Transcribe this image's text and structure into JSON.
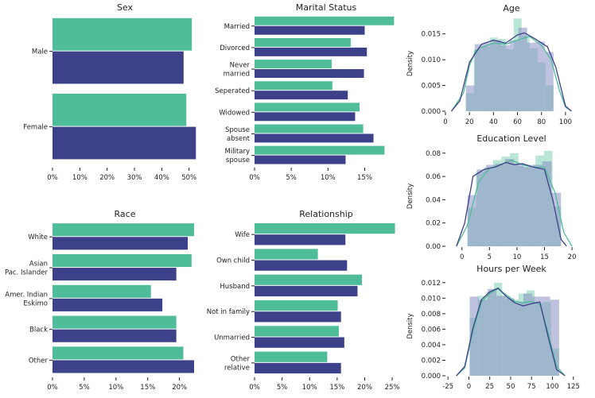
{
  "colors": {
    "teal": "#4fbc9a",
    "navy": "#3d4189",
    "teal_fill": "#7fd2b6",
    "navy_fill": "#8a8fc4"
  },
  "chart_data": [
    {
      "id": "sex",
      "type": "bar",
      "orientation": "horizontal",
      "title": "Sex",
      "categories": [
        [
          "Male"
        ],
        [
          "Female"
        ]
      ],
      "series": [
        {
          "name": "teal",
          "values": [
            51,
            49
          ]
        },
        {
          "name": "navy",
          "values": [
            48,
            52.5
          ]
        }
      ],
      "xlim": [
        0,
        53
      ],
      "xticks": [
        0,
        10,
        20,
        30,
        40,
        50
      ],
      "xtick_labels": [
        "0%",
        "10%",
        "20%",
        "30%",
        "40%",
        "50%"
      ]
    },
    {
      "id": "marital",
      "type": "bar",
      "orientation": "horizontal",
      "title": "Marital Status",
      "categories": [
        [
          "Married"
        ],
        [
          "Divorced"
        ],
        [
          "Never",
          "married"
        ],
        [
          "Seperated"
        ],
        [
          "Widowed"
        ],
        [
          "Spouse",
          "absent"
        ],
        [
          "Military",
          "spouse"
        ]
      ],
      "series": [
        {
          "name": "teal",
          "values": [
            19.0,
            13.1,
            10.5,
            10.6,
            14.3,
            14.8,
            17.7
          ]
        },
        {
          "name": "navy",
          "values": [
            15.0,
            15.3,
            14.9,
            12.7,
            13.7,
            16.2,
            12.4
          ]
        }
      ],
      "xlim": [
        0,
        19.5
      ],
      "xticks": [
        0,
        5,
        10,
        15
      ],
      "xtick_labels": [
        "0%",
        "5%",
        "10%",
        "15%"
      ]
    },
    {
      "id": "race",
      "type": "bar",
      "orientation": "horizontal",
      "title": "Race",
      "categories": [
        [
          "White"
        ],
        [
          "Asian",
          "Pac. Islander"
        ],
        [
          "Amer. Indian",
          "Eskimo"
        ],
        [
          "Black"
        ],
        [
          "Other"
        ]
      ],
      "series": [
        {
          "name": "teal",
          "values": [
            22.3,
            21.9,
            15.5,
            19.5,
            20.6
          ]
        },
        {
          "name": "navy",
          "values": [
            21.3,
            19.5,
            17.3,
            19.5,
            22.3
          ]
        }
      ],
      "xlim": [
        0,
        22.8
      ],
      "xticks": [
        0,
        5,
        10,
        15,
        20
      ],
      "xtick_labels": [
        "0%",
        "5%",
        "10%",
        "15%",
        "20%"
      ]
    },
    {
      "id": "relationship",
      "type": "bar",
      "orientation": "horizontal",
      "title": "Relationship",
      "categories": [
        [
          "Wife"
        ],
        [
          "Own child"
        ],
        [
          "Husband"
        ],
        [
          "Not in family"
        ],
        [
          "Unmarried"
        ],
        [
          "Other",
          "relative"
        ]
      ],
      "series": [
        {
          "name": "teal",
          "values": [
            25.5,
            11.5,
            19.5,
            15.1,
            15.3,
            13.2
          ]
        },
        {
          "name": "navy",
          "values": [
            16.5,
            16.8,
            18.7,
            15.7,
            16.3,
            15.7
          ]
        }
      ],
      "xlim": [
        0,
        26
      ],
      "xticks": [
        0,
        5,
        10,
        15,
        20,
        25
      ],
      "xtick_labels": [
        "0%",
        "5%",
        "10%",
        "15%",
        "20%",
        "25%"
      ]
    },
    {
      "id": "age",
      "type": "histogram_kde",
      "title": "Age",
      "ylabel": "Density",
      "xlim": [
        0,
        110
      ],
      "ylim": [
        0,
        0.0185
      ],
      "xticks": [
        0,
        20,
        40,
        60,
        80,
        100
      ],
      "yticks": [
        0,
        0.005,
        0.01,
        0.015
      ],
      "ytick_labels": [
        "0.000",
        "0.005",
        "0.010",
        "0.015"
      ],
      "bin_edges": [
        17,
        24.3,
        31.6,
        38.9,
        46.2,
        53.5,
        60.8,
        68.1,
        75.4,
        82.7,
        90
      ],
      "series": [
        {
          "name": "teal",
          "hist": [
            0.0035,
            0.012,
            0.0125,
            0.0143,
            0.014,
            0.012,
            0.018,
            0.0148,
            0.0122,
            0.0095,
            0.005
          ],
          "hist_edges_extra": 97,
          "kde_x": [
            5,
            15,
            20,
            25,
            30,
            40,
            50,
            60,
            70,
            80,
            88,
            95,
            100,
            105
          ],
          "kde_y": [
            0,
            0.0035,
            0.0088,
            0.0117,
            0.0124,
            0.0132,
            0.013,
            0.0138,
            0.0145,
            0.0128,
            0.01,
            0.004,
            0.0008,
            0
          ]
        },
        {
          "name": "navy",
          "hist": [
            0.005,
            0.013,
            0.0133,
            0.0138,
            0.0128,
            0.0138,
            0.0162,
            0.0133,
            0.0135,
            0.0115
          ],
          "kde_x": [
            5,
            12,
            20,
            30,
            40,
            50,
            60,
            66,
            75,
            85,
            92,
            100,
            105
          ],
          "kde_y": [
            0,
            0.002,
            0.0095,
            0.013,
            0.0138,
            0.0132,
            0.0148,
            0.0152,
            0.014,
            0.0125,
            0.0085,
            0.001,
            0
          ]
        }
      ]
    },
    {
      "id": "education",
      "type": "histogram_kde",
      "title": "Education Level",
      "ylabel": "Density",
      "xlim": [
        -3,
        21
      ],
      "ylim": [
        0,
        0.086
      ],
      "xticks": [
        0,
        5,
        10,
        15,
        20
      ],
      "yticks": [
        0,
        0.02,
        0.04,
        0.06,
        0.08
      ],
      "ytick_labels": [
        "0.00",
        "0.02",
        "0.04",
        "0.06",
        "0.08"
      ],
      "bin_edges": [
        1,
        2.6,
        4.2,
        5.8,
        7.4,
        9.0,
        10.6,
        12.2,
        13.8,
        15.4,
        17.0,
        18.0
      ],
      "series": [
        {
          "name": "teal",
          "hist": [
            0.033,
            0.064,
            0.068,
            0.074,
            0.077,
            0.08,
            0.069,
            0.07,
            0.078,
            0.082,
            0.034
          ],
          "kde_x": [
            -1,
            1,
            3,
            5,
            7,
            9,
            11,
            13,
            15,
            17,
            18.5,
            20
          ],
          "kde_y": [
            0,
            0.018,
            0.055,
            0.067,
            0.07,
            0.074,
            0.07,
            0.068,
            0.068,
            0.045,
            0.012,
            0
          ]
        },
        {
          "name": "navy",
          "hist": [
            0.044,
            0.066,
            0.07,
            0.071,
            0.075,
            0.071,
            0.068,
            0.07,
            0.073,
            0.046
          ],
          "kde_x": [
            -1,
            0.5,
            2,
            4,
            6,
            8,
            9.5,
            11,
            13,
            15,
            16.5,
            18,
            19
          ],
          "kde_y": [
            0,
            0.02,
            0.06,
            0.066,
            0.068,
            0.072,
            0.07,
            0.071,
            0.068,
            0.066,
            0.04,
            0.006,
            0
          ]
        }
      ]
    },
    {
      "id": "hours",
      "type": "histogram_kde",
      "title": "Hours per Week",
      "ylabel": "Density",
      "xlim": [
        -28,
        130
      ],
      "ylim": [
        0,
        0.0128
      ],
      "xticks": [
        -25,
        0,
        25,
        50,
        75,
        100,
        125
      ],
      "yticks": [
        0,
        0.002,
        0.004,
        0.006,
        0.008,
        0.01,
        0.012
      ],
      "ytick_labels": [
        "0.000",
        "0.002",
        "0.004",
        "0.006",
        "0.008",
        "0.010",
        "0.012"
      ],
      "bin_edges": [
        1,
        10.8,
        20.6,
        30.4,
        40.2,
        50.0,
        59.8,
        69.6,
        79.4,
        89.2,
        99.0,
        108
      ],
      "series": [
        {
          "name": "teal",
          "hist": [
            0.0075,
            0.0103,
            0.0108,
            0.012,
            0.0103,
            0.0098,
            0.0106,
            0.011,
            0.0094,
            0.0095,
            0.0035
          ],
          "kde_x": [
            -15,
            -5,
            5,
            15,
            25,
            35,
            45,
            55,
            65,
            75,
            85,
            95,
            105,
            115
          ],
          "kde_y": [
            0,
            0.001,
            0.0058,
            0.0095,
            0.0106,
            0.0112,
            0.0104,
            0.0096,
            0.0094,
            0.0096,
            0.0092,
            0.0055,
            0.0012,
            0
          ]
        },
        {
          "name": "navy",
          "hist": [
            0.0102,
            0.0098,
            0.0112,
            0.0103,
            0.01,
            0.0094,
            0.0106,
            0.0102,
            0.0102,
            0.0098
          ],
          "kde_x": [
            -15,
            -5,
            5,
            15,
            25,
            35,
            45,
            55,
            65,
            75,
            85,
            95,
            105,
            115
          ],
          "kde_y": [
            0,
            0.0012,
            0.0062,
            0.0098,
            0.0108,
            0.0113,
            0.0102,
            0.0094,
            0.009,
            0.0093,
            0.0095,
            0.005,
            0.0008,
            0
          ]
        }
      ]
    }
  ]
}
